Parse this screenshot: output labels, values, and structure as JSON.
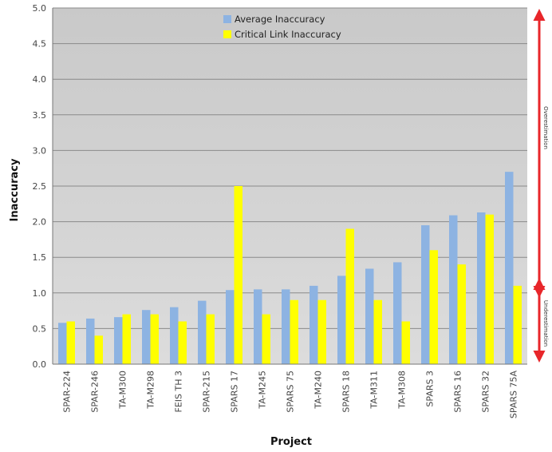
{
  "chart_data": {
    "type": "bar",
    "xlabel": "Project",
    "ylabel": "Inaccuracy",
    "ylim": [
      0,
      5.0
    ],
    "y_ticks": [
      "0.0",
      "0.5",
      "1.0",
      "1.5",
      "2.0",
      "2.5",
      "3.0",
      "3.5",
      "4.0",
      "4.5",
      "5.0"
    ],
    "categories": [
      "SPAR-224",
      "SPAR-246",
      "TA-M300",
      "TA-M298",
      "FEIS TH 3",
      "SPAR-215",
      "SPARS 17",
      "TA-M245",
      "SPARS 75",
      "TA-M240",
      "SPARS 18",
      "TA-M311",
      "TA-M308",
      "SPARS 3",
      "SPARS 16",
      "SPARS 32",
      "SPARS 75A"
    ],
    "series": [
      {
        "name": "Average Inaccuracy",
        "color": "#8db3e2",
        "values": [
          0.58,
          0.64,
          0.66,
          0.76,
          0.8,
          0.89,
          1.04,
          1.05,
          1.05,
          1.1,
          1.24,
          1.34,
          1.43,
          1.95,
          2.09,
          2.13,
          2.7
        ]
      },
      {
        "name": "Critical Link Inaccuracy",
        "color": "#ffff00",
        "values": [
          0.6,
          0.4,
          0.7,
          0.7,
          0.6,
          0.7,
          2.5,
          0.7,
          0.9,
          0.9,
          1.9,
          0.9,
          0.6,
          1.6,
          1.4,
          2.1,
          1.1
        ]
      }
    ],
    "grid": true,
    "legend_position": "top-center",
    "annotations": [
      {
        "label": "Overestimation",
        "from": 1.0,
        "to": 5.0,
        "color": "#e8262a"
      },
      {
        "label": "Underestimation",
        "from": 0.0,
        "to": 1.0,
        "color": "#e8262a"
      }
    ]
  }
}
